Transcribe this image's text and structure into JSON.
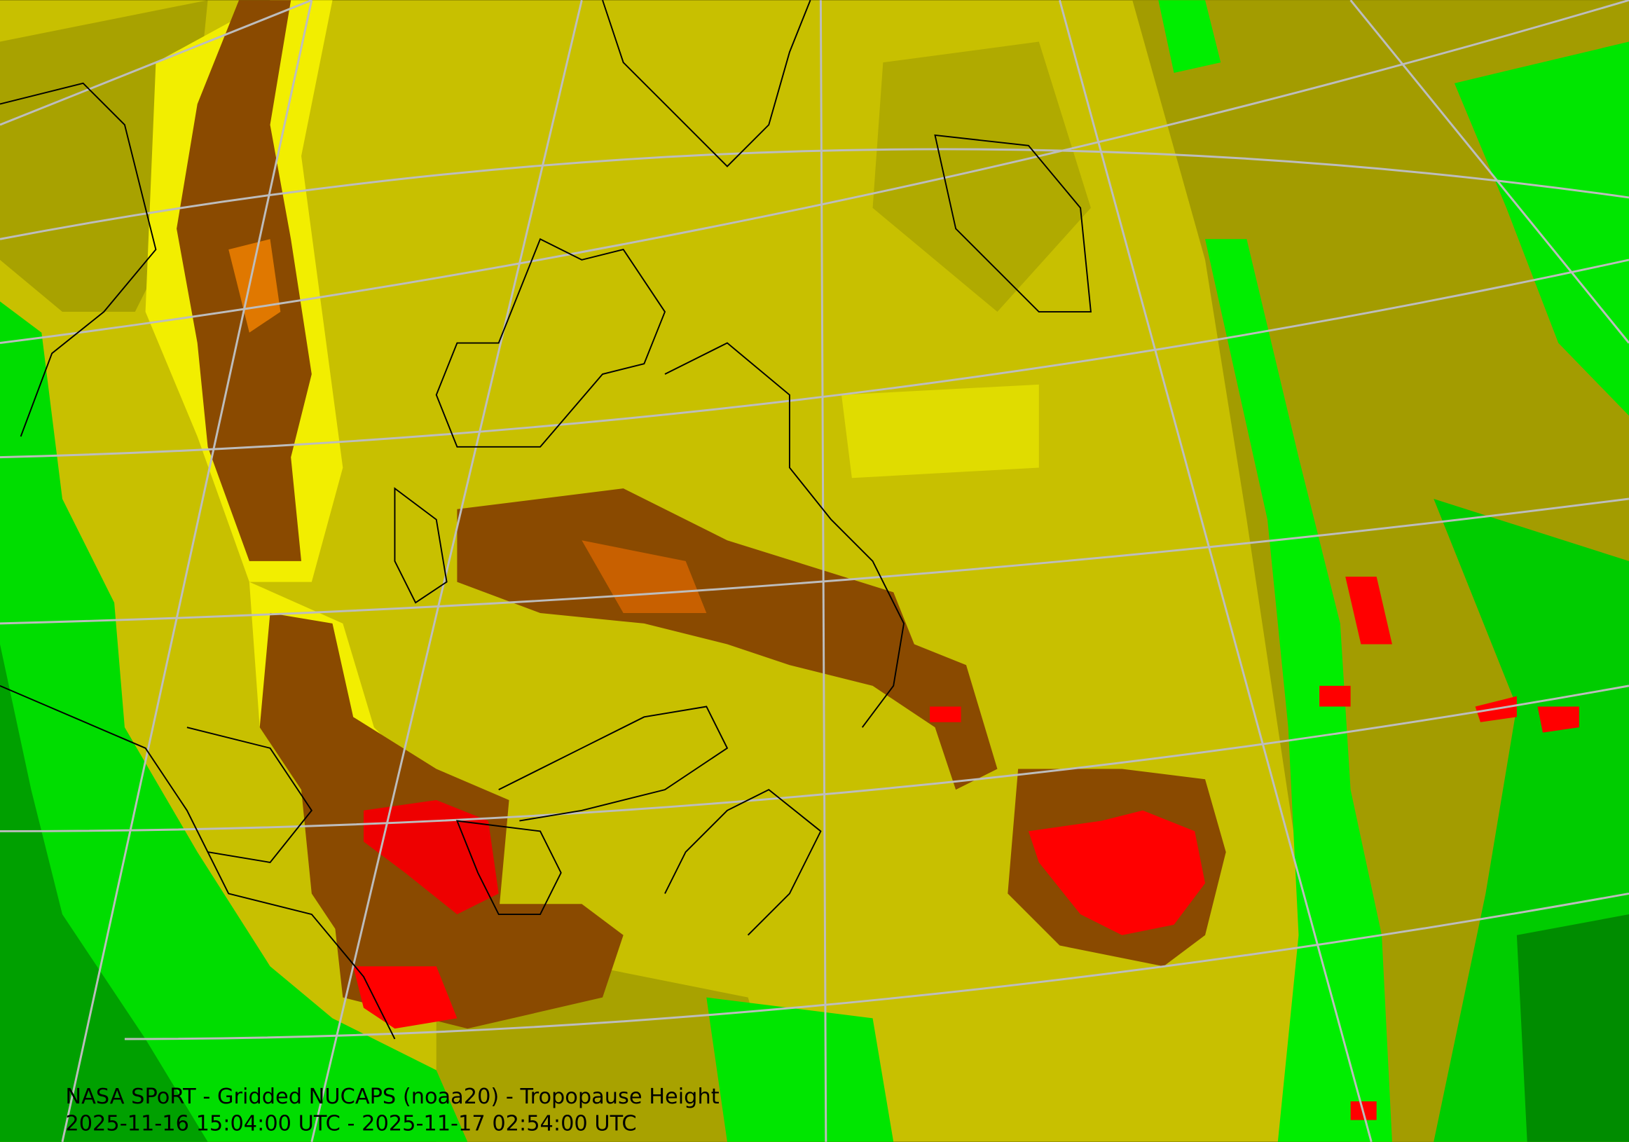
{
  "caption": {
    "title": "NASA SPoRT - Gridded NUCAPS (noaa20) - Tropopause Height",
    "time_range": "2025-11-16 15:04:00 UTC - 2025-11-17 02:54:00 UTC"
  }
}
